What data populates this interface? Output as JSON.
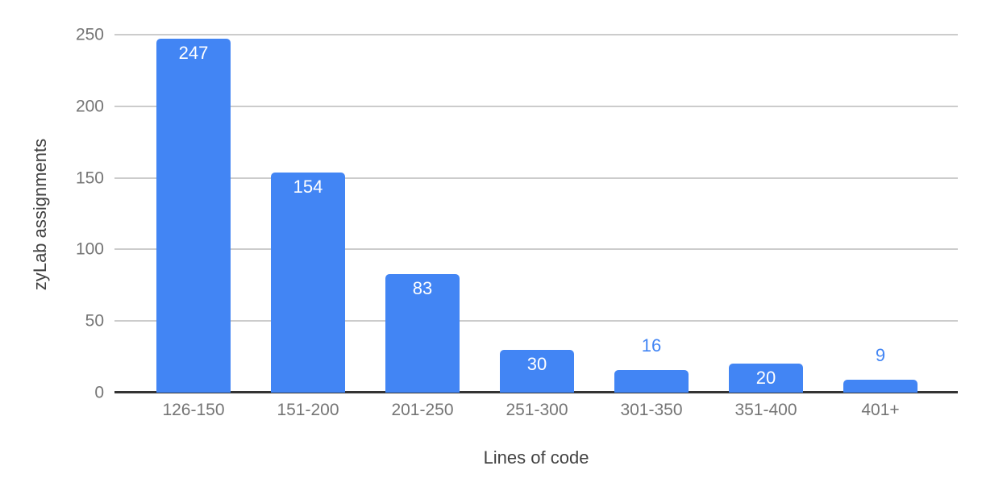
{
  "chart_data": {
    "type": "bar",
    "title": "",
    "xlabel": "Lines of code",
    "ylabel": "zyLab assignments",
    "categories": [
      "126-150",
      "151-200",
      "201-250",
      "251-300",
      "301-350",
      "351-400",
      "401+"
    ],
    "values": [
      247,
      154,
      83,
      30,
      16,
      20,
      9
    ],
    "data_labels": [
      "247",
      "154",
      "83",
      "30",
      "16",
      "20",
      "9"
    ],
    "data_label_position": [
      "inside",
      "inside",
      "inside",
      "inside",
      "above",
      "inside",
      "above"
    ],
    "ylim": [
      0,
      250
    ],
    "yticks": [
      0,
      50,
      100,
      150,
      200,
      250
    ],
    "grid": "horizontal",
    "legend": "none",
    "colors": {
      "bar": "#4285f4",
      "data_label_inside": "#ffffff",
      "data_label_above": "#4285f4",
      "tick_label": "#757575",
      "axis_title": "#424242",
      "gridline": "#cccccc",
      "baseline": "#333333",
      "background": "#ffffff"
    }
  }
}
